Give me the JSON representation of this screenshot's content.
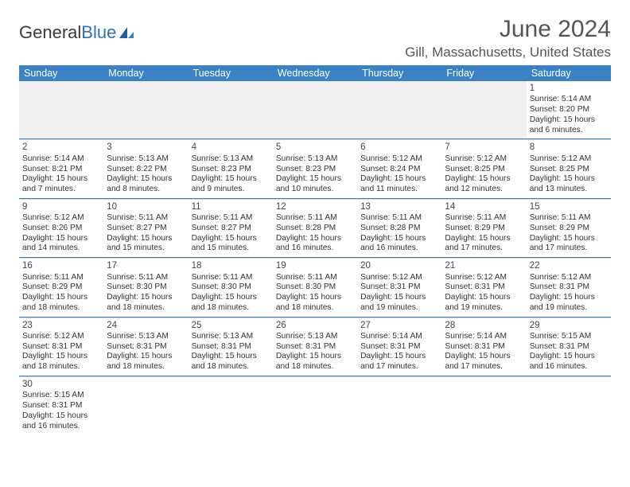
{
  "brand": {
    "part1": "General",
    "part2": "Blue"
  },
  "title": "June 2024",
  "location": "Gill, Massachusetts, United States",
  "colors": {
    "header_bg": "#3a82c4",
    "header_text": "#ffffff",
    "rule": "#3a82c4",
    "cell_rule": "#d8d8d8",
    "body_text": "#333333",
    "title_text": "#555555"
  },
  "day_names": [
    "Sunday",
    "Monday",
    "Tuesday",
    "Wednesday",
    "Thursday",
    "Friday",
    "Saturday"
  ],
  "weeks": [
    [
      null,
      null,
      null,
      null,
      null,
      null,
      {
        "n": "1",
        "sr": "Sunrise: 5:14 AM",
        "ss": "Sunset: 8:20 PM",
        "dl": "Daylight: 15 hours and 6 minutes."
      }
    ],
    [
      {
        "n": "2",
        "sr": "Sunrise: 5:14 AM",
        "ss": "Sunset: 8:21 PM",
        "dl": "Daylight: 15 hours and 7 minutes."
      },
      {
        "n": "3",
        "sr": "Sunrise: 5:13 AM",
        "ss": "Sunset: 8:22 PM",
        "dl": "Daylight: 15 hours and 8 minutes."
      },
      {
        "n": "4",
        "sr": "Sunrise: 5:13 AM",
        "ss": "Sunset: 8:23 PM",
        "dl": "Daylight: 15 hours and 9 minutes."
      },
      {
        "n": "5",
        "sr": "Sunrise: 5:13 AM",
        "ss": "Sunset: 8:23 PM",
        "dl": "Daylight: 15 hours and 10 minutes."
      },
      {
        "n": "6",
        "sr": "Sunrise: 5:12 AM",
        "ss": "Sunset: 8:24 PM",
        "dl": "Daylight: 15 hours and 11 minutes."
      },
      {
        "n": "7",
        "sr": "Sunrise: 5:12 AM",
        "ss": "Sunset: 8:25 PM",
        "dl": "Daylight: 15 hours and 12 minutes."
      },
      {
        "n": "8",
        "sr": "Sunrise: 5:12 AM",
        "ss": "Sunset: 8:25 PM",
        "dl": "Daylight: 15 hours and 13 minutes."
      }
    ],
    [
      {
        "n": "9",
        "sr": "Sunrise: 5:12 AM",
        "ss": "Sunset: 8:26 PM",
        "dl": "Daylight: 15 hours and 14 minutes."
      },
      {
        "n": "10",
        "sr": "Sunrise: 5:11 AM",
        "ss": "Sunset: 8:27 PM",
        "dl": "Daylight: 15 hours and 15 minutes."
      },
      {
        "n": "11",
        "sr": "Sunrise: 5:11 AM",
        "ss": "Sunset: 8:27 PM",
        "dl": "Daylight: 15 hours and 15 minutes."
      },
      {
        "n": "12",
        "sr": "Sunrise: 5:11 AM",
        "ss": "Sunset: 8:28 PM",
        "dl": "Daylight: 15 hours and 16 minutes."
      },
      {
        "n": "13",
        "sr": "Sunrise: 5:11 AM",
        "ss": "Sunset: 8:28 PM",
        "dl": "Daylight: 15 hours and 16 minutes."
      },
      {
        "n": "14",
        "sr": "Sunrise: 5:11 AM",
        "ss": "Sunset: 8:29 PM",
        "dl": "Daylight: 15 hours and 17 minutes."
      },
      {
        "n": "15",
        "sr": "Sunrise: 5:11 AM",
        "ss": "Sunset: 8:29 PM",
        "dl": "Daylight: 15 hours and 17 minutes."
      }
    ],
    [
      {
        "n": "16",
        "sr": "Sunrise: 5:11 AM",
        "ss": "Sunset: 8:29 PM",
        "dl": "Daylight: 15 hours and 18 minutes."
      },
      {
        "n": "17",
        "sr": "Sunrise: 5:11 AM",
        "ss": "Sunset: 8:30 PM",
        "dl": "Daylight: 15 hours and 18 minutes."
      },
      {
        "n": "18",
        "sr": "Sunrise: 5:11 AM",
        "ss": "Sunset: 8:30 PM",
        "dl": "Daylight: 15 hours and 18 minutes."
      },
      {
        "n": "19",
        "sr": "Sunrise: 5:11 AM",
        "ss": "Sunset: 8:30 PM",
        "dl": "Daylight: 15 hours and 18 minutes."
      },
      {
        "n": "20",
        "sr": "Sunrise: 5:12 AM",
        "ss": "Sunset: 8:31 PM",
        "dl": "Daylight: 15 hours and 19 minutes."
      },
      {
        "n": "21",
        "sr": "Sunrise: 5:12 AM",
        "ss": "Sunset: 8:31 PM",
        "dl": "Daylight: 15 hours and 19 minutes."
      },
      {
        "n": "22",
        "sr": "Sunrise: 5:12 AM",
        "ss": "Sunset: 8:31 PM",
        "dl": "Daylight: 15 hours and 19 minutes."
      }
    ],
    [
      {
        "n": "23",
        "sr": "Sunrise: 5:12 AM",
        "ss": "Sunset: 8:31 PM",
        "dl": "Daylight: 15 hours and 18 minutes."
      },
      {
        "n": "24",
        "sr": "Sunrise: 5:13 AM",
        "ss": "Sunset: 8:31 PM",
        "dl": "Daylight: 15 hours and 18 minutes."
      },
      {
        "n": "25",
        "sr": "Sunrise: 5:13 AM",
        "ss": "Sunset: 8:31 PM",
        "dl": "Daylight: 15 hours and 18 minutes."
      },
      {
        "n": "26",
        "sr": "Sunrise: 5:13 AM",
        "ss": "Sunset: 8:31 PM",
        "dl": "Daylight: 15 hours and 18 minutes."
      },
      {
        "n": "27",
        "sr": "Sunrise: 5:14 AM",
        "ss": "Sunset: 8:31 PM",
        "dl": "Daylight: 15 hours and 17 minutes."
      },
      {
        "n": "28",
        "sr": "Sunrise: 5:14 AM",
        "ss": "Sunset: 8:31 PM",
        "dl": "Daylight: 15 hours and 17 minutes."
      },
      {
        "n": "29",
        "sr": "Sunrise: 5:15 AM",
        "ss": "Sunset: 8:31 PM",
        "dl": "Daylight: 15 hours and 16 minutes."
      }
    ],
    [
      {
        "n": "30",
        "sr": "Sunrise: 5:15 AM",
        "ss": "Sunset: 8:31 PM",
        "dl": "Daylight: 15 hours and 16 minutes."
      },
      null,
      null,
      null,
      null,
      null,
      null
    ]
  ]
}
